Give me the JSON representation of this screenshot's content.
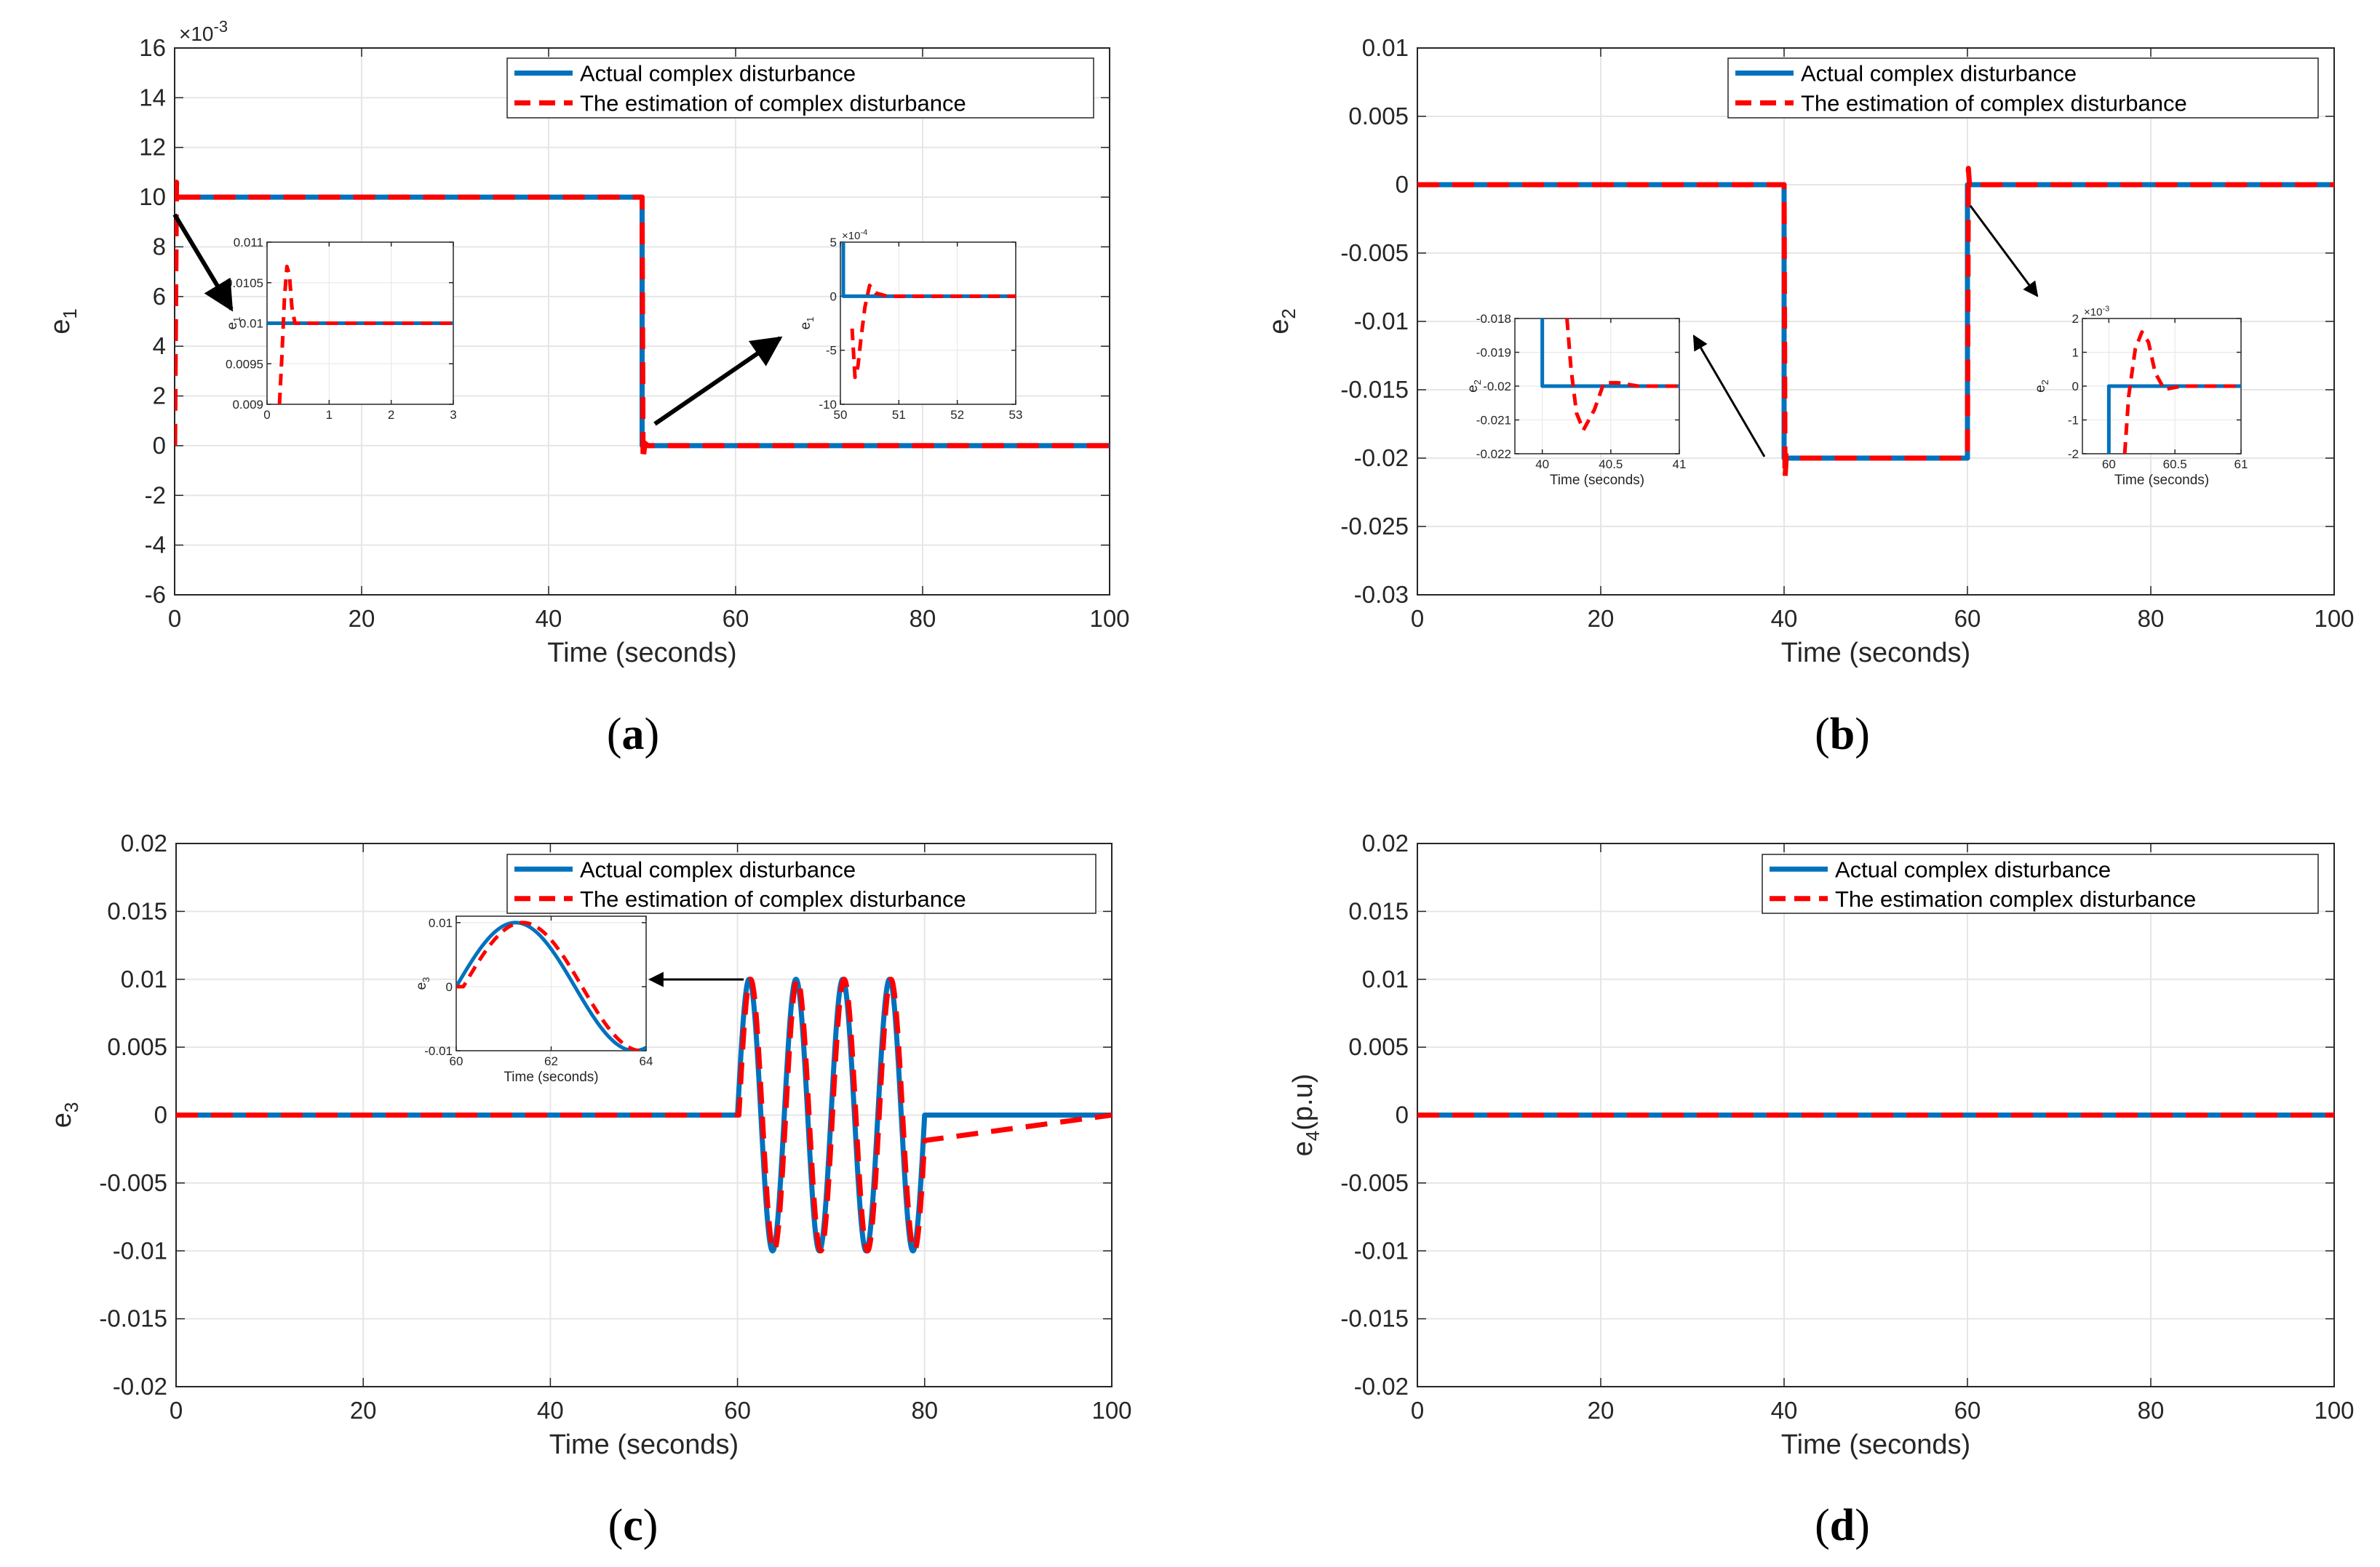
{
  "colors": {
    "actual": "#0072BD",
    "estimate": "#FF0000",
    "grid": "#e6e6e6",
    "axis": "#262626"
  },
  "chart_data": [
    {
      "id": "a",
      "type": "line",
      "caption": {
        "open": "(",
        "letter": "a",
        "close": ")"
      },
      "xlabel": "Time (seconds)",
      "ylabel": "e",
      "ylabel_sub": "1",
      "xlim": [
        0,
        100
      ],
      "ylim": [
        -6,
        16
      ],
      "xticks": [
        "0",
        "20",
        "40",
        "60",
        "80",
        "100"
      ],
      "yticks": [
        "-6",
        "-4",
        "-2",
        "0",
        "2",
        "4",
        "6",
        "8",
        "10",
        "12",
        "14",
        "16"
      ],
      "multiplier": {
        "base": "×10",
        "exp": "-3"
      },
      "legend": [
        "Actual complex disturbance",
        "The estimation of complex disturbance"
      ],
      "series": [
        {
          "name": "Actual complex disturbance",
          "x": [
            0,
            50,
            50,
            100
          ],
          "y": [
            10,
            10,
            0,
            0
          ]
        },
        {
          "name": "The estimation of complex disturbance",
          "x": [
            0,
            0.2,
            0.35,
            0.6,
            50,
            50.1,
            50.3,
            50.6,
            100
          ],
          "y": [
            0,
            10.6,
            10,
            10,
            10,
            -0.6,
            0.1,
            0,
            0
          ]
        }
      ],
      "insets": [
        {
          "xlim": [
            0,
            3
          ],
          "ylim": [
            0.009,
            0.011
          ],
          "xticks": [
            "0",
            "1",
            "2",
            "3"
          ],
          "yticks": [
            "0.009",
            "0.0095",
            "0.01",
            "0.0105",
            "0.011"
          ],
          "ylabel": "e",
          "ylabel_sub": "1",
          "series": [
            {
              "x": [
                0,
                3
              ],
              "y": [
                0.01,
                0.01
              ]
            },
            {
              "x": [
                0.2,
                0.24,
                0.28,
                0.32,
                0.36,
                0.4,
                0.45,
                0.5,
                3
              ],
              "y": [
                0.009,
                0.0096,
                0.0103,
                0.0107,
                0.0106,
                0.0102,
                0.01,
                0.01,
                0.01
              ]
            }
          ]
        },
        {
          "xlim": [
            50,
            53
          ],
          "ylim": [
            -10,
            5
          ],
          "xticks": [
            "50",
            "51",
            "52",
            "53"
          ],
          "yticks": [
            "-10",
            "-5",
            "0",
            "5"
          ],
          "multiplier": {
            "base": "×10",
            "exp": "-4"
          },
          "ylabel": "e",
          "ylabel_sub": "1",
          "series": [
            {
              "x": [
                50.05,
                50.05,
                53
              ],
              "y": [
                5,
                0,
                0
              ]
            },
            {
              "x": [
                50.2,
                50.25,
                50.3,
                50.35,
                50.42,
                50.5,
                50.6,
                50.8,
                53
              ],
              "y": [
                -3,
                -7.5,
                -6.5,
                -4,
                -1,
                1,
                0.3,
                0,
                0
              ]
            }
          ]
        }
      ]
    },
    {
      "id": "b",
      "type": "line",
      "caption": {
        "open": "(",
        "letter": "b",
        "close": ")"
      },
      "xlabel": "Time (seconds)",
      "ylabel": "e",
      "ylabel_sub": "2",
      "xlim": [
        0,
        100
      ],
      "ylim": [
        -0.03,
        0.01
      ],
      "xticks": [
        "0",
        "20",
        "40",
        "60",
        "80",
        "100"
      ],
      "yticks": [
        "-0.03",
        "-0.025",
        "-0.02",
        "-0.015",
        "-0.01",
        "-0.005",
        "0",
        "0.005",
        "0.01"
      ],
      "legend": [
        "Actual complex disturbance",
        "The estimation of complex disturbance"
      ],
      "series": [
        {
          "name": "Actual complex disturbance",
          "x": [
            0,
            40,
            40,
            60,
            60,
            100
          ],
          "y": [
            0,
            0,
            -0.02,
            -0.02,
            0,
            0
          ]
        },
        {
          "name": "The estimation of complex disturbance",
          "x": [
            0,
            40,
            40.1,
            40.25,
            40.6,
            60,
            60.1,
            60.25,
            60.6,
            100
          ],
          "y": [
            0,
            0,
            -0.0215,
            -0.0198,
            -0.02,
            -0.02,
            0.0012,
            -0.0002,
            0,
            0
          ]
        }
      ],
      "insets": [
        {
          "xlim": [
            39.8,
            41
          ],
          "ylim": [
            -0.022,
            -0.018
          ],
          "xticks": [
            "40",
            "40.5",
            "41"
          ],
          "yticks": [
            "-0.022",
            "-0.021",
            "-0.02",
            "-0.019",
            "-0.018"
          ],
          "xlabel": "Time (seconds)",
          "ylabel": "e",
          "ylabel_sub": "2",
          "series": [
            {
              "x": [
                40,
                40,
                41
              ],
              "y": [
                -0.018,
                -0.02,
                -0.02
              ]
            },
            {
              "x": [
                40.18,
                40.21,
                40.25,
                40.3,
                40.38,
                40.45,
                40.55,
                40.7,
                41
              ],
              "y": [
                -0.018,
                -0.0195,
                -0.0208,
                -0.0213,
                -0.0207,
                -0.0199,
                -0.0199,
                -0.02,
                -0.02
              ]
            }
          ]
        },
        {
          "xlim": [
            59.8,
            61
          ],
          "ylim": [
            -2,
            2
          ],
          "xticks": [
            "60",
            "60.5",
            "61"
          ],
          "yticks": [
            "-2",
            "-1",
            "0",
            "1",
            "2"
          ],
          "multiplier": {
            "base": "×10",
            "exp": "-3"
          },
          "xlabel": "Time (seconds)",
          "ylabel": "e",
          "ylabel_sub": "2",
          "series": [
            {
              "x": [
                60,
                60,
                61
              ],
              "y": [
                -2,
                0,
                0
              ]
            },
            {
              "x": [
                60.12,
                60.15,
                60.2,
                60.25,
                60.3,
                60.35,
                60.42,
                60.55,
                61
              ],
              "y": [
                -2,
                -0.3,
                1.1,
                1.6,
                1.3,
                0.4,
                -0.1,
                0,
                0
              ]
            }
          ]
        }
      ]
    },
    {
      "id": "c",
      "type": "line",
      "caption": {
        "open": "(",
        "letter": "c",
        "close": ")"
      },
      "xlabel": "Time (seconds)",
      "ylabel": "e",
      "ylabel_sub": "3",
      "xlim": [
        0,
        100
      ],
      "ylim": [
        -0.02,
        0.02
      ],
      "xticks": [
        "0",
        "20",
        "40",
        "60",
        "80",
        "100"
      ],
      "yticks": [
        "-0.02",
        "-0.015",
        "-0.01",
        "-0.005",
        "0",
        "0.005",
        "0.01",
        "0.015",
        "0.02"
      ],
      "legend": [
        "Actual complex disturbance",
        "The estimation of complex disturbance"
      ],
      "sine": {
        "start": 60,
        "end": 80,
        "amplitude": 0.01,
        "period": 5,
        "estimate_lag": 0.15
      },
      "insets": [
        {
          "xlim": [
            60,
            64
          ],
          "ylim": [
            -0.01,
            0.011
          ],
          "xticks": [
            "60",
            "62",
            "64"
          ],
          "yticks": [
            "-0.01",
            "0",
            "0.01"
          ],
          "xlabel": "Time (seconds)",
          "ylabel": "e",
          "ylabel_sub": "3",
          "sine": {
            "start": 60,
            "end": 64,
            "amplitude": 0.01,
            "period": 5,
            "estimate_lag": 0.15
          }
        }
      ]
    },
    {
      "id": "d",
      "type": "line",
      "caption": {
        "open": "(",
        "letter": "d",
        "close": ")"
      },
      "xlabel": "Time (seconds)",
      "ylabel": "e",
      "ylabel_sub": "4",
      "ylabel_suffix": "(p.u)",
      "xlim": [
        0,
        100
      ],
      "ylim": [
        -0.02,
        0.02
      ],
      "xticks": [
        "0",
        "20",
        "40",
        "60",
        "80",
        "100"
      ],
      "yticks": [
        "-0.02",
        "-0.015",
        "-0.01",
        "-0.005",
        "0",
        "0.005",
        "0.01",
        "0.015",
        "0.02"
      ],
      "legend": [
        "Actual complex disturbance",
        "The estimation complex disturbance"
      ],
      "series": [
        {
          "name": "Actual complex disturbance",
          "x": [
            0,
            100
          ],
          "y": [
            0,
            0
          ]
        },
        {
          "name": "The estimation complex disturbance",
          "x": [
            0,
            100
          ],
          "y": [
            0,
            0
          ]
        }
      ],
      "insets": []
    }
  ]
}
